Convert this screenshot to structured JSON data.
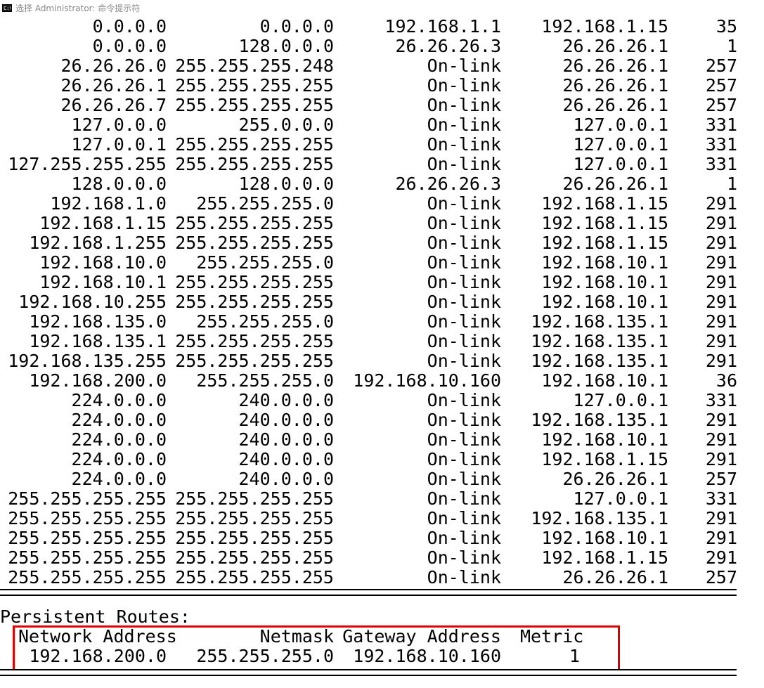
{
  "window": {
    "title": "选择 Administrator: 命令提示符"
  },
  "routes": [
    [
      "0.0.0.0",
      "0.0.0.0",
      "192.168.1.1",
      "192.168.1.15",
      "35"
    ],
    [
      "0.0.0.0",
      "128.0.0.0",
      "26.26.26.3",
      "26.26.26.1",
      "1"
    ],
    [
      "26.26.26.0",
      "255.255.255.248",
      "On-link",
      "26.26.26.1",
      "257"
    ],
    [
      "26.26.26.1",
      "255.255.255.255",
      "On-link",
      "26.26.26.1",
      "257"
    ],
    [
      "26.26.26.7",
      "255.255.255.255",
      "On-link",
      "26.26.26.1",
      "257"
    ],
    [
      "127.0.0.0",
      "255.0.0.0",
      "On-link",
      "127.0.0.1",
      "331"
    ],
    [
      "127.0.0.1",
      "255.255.255.255",
      "On-link",
      "127.0.0.1",
      "331"
    ],
    [
      "127.255.255.255",
      "255.255.255.255",
      "On-link",
      "127.0.0.1",
      "331"
    ],
    [
      "128.0.0.0",
      "128.0.0.0",
      "26.26.26.3",
      "26.26.26.1",
      "1"
    ],
    [
      "192.168.1.0",
      "255.255.255.0",
      "On-link",
      "192.168.1.15",
      "291"
    ],
    [
      "192.168.1.15",
      "255.255.255.255",
      "On-link",
      "192.168.1.15",
      "291"
    ],
    [
      "192.168.1.255",
      "255.255.255.255",
      "On-link",
      "192.168.1.15",
      "291"
    ],
    [
      "192.168.10.0",
      "255.255.255.0",
      "On-link",
      "192.168.10.1",
      "291"
    ],
    [
      "192.168.10.1",
      "255.255.255.255",
      "On-link",
      "192.168.10.1",
      "291"
    ],
    [
      "192.168.10.255",
      "255.255.255.255",
      "On-link",
      "192.168.10.1",
      "291"
    ],
    [
      "192.168.135.0",
      "255.255.255.0",
      "On-link",
      "192.168.135.1",
      "291"
    ],
    [
      "192.168.135.1",
      "255.255.255.255",
      "On-link",
      "192.168.135.1",
      "291"
    ],
    [
      "192.168.135.255",
      "255.255.255.255",
      "On-link",
      "192.168.135.1",
      "291"
    ],
    [
      "192.168.200.0",
      "255.255.255.0",
      "192.168.10.160",
      "192.168.10.1",
      "36"
    ],
    [
      "224.0.0.0",
      "240.0.0.0",
      "On-link",
      "127.0.0.1",
      "331"
    ],
    [
      "224.0.0.0",
      "240.0.0.0",
      "On-link",
      "192.168.135.1",
      "291"
    ],
    [
      "224.0.0.0",
      "240.0.0.0",
      "On-link",
      "192.168.10.1",
      "291"
    ],
    [
      "224.0.0.0",
      "240.0.0.0",
      "On-link",
      "192.168.1.15",
      "291"
    ],
    [
      "224.0.0.0",
      "240.0.0.0",
      "On-link",
      "26.26.26.1",
      "257"
    ],
    [
      "255.255.255.255",
      "255.255.255.255",
      "On-link",
      "127.0.0.1",
      "331"
    ],
    [
      "255.255.255.255",
      "255.255.255.255",
      "On-link",
      "192.168.135.1",
      "291"
    ],
    [
      "255.255.255.255",
      "255.255.255.255",
      "On-link",
      "192.168.10.1",
      "291"
    ],
    [
      "255.255.255.255",
      "255.255.255.255",
      "On-link",
      "192.168.1.15",
      "291"
    ],
    [
      "255.255.255.255",
      "255.255.255.255",
      "On-link",
      "26.26.26.1",
      "257"
    ]
  ],
  "persistent": {
    "heading": "Persistent Routes:",
    "headers": [
      "Network Address",
      "Netmask",
      "Gateway Address",
      "Metric"
    ],
    "row": [
      "192.168.200.0",
      "255.255.255.0",
      "192.168.10.160",
      "1"
    ]
  },
  "colors": {
    "highlight": "#e00000"
  }
}
